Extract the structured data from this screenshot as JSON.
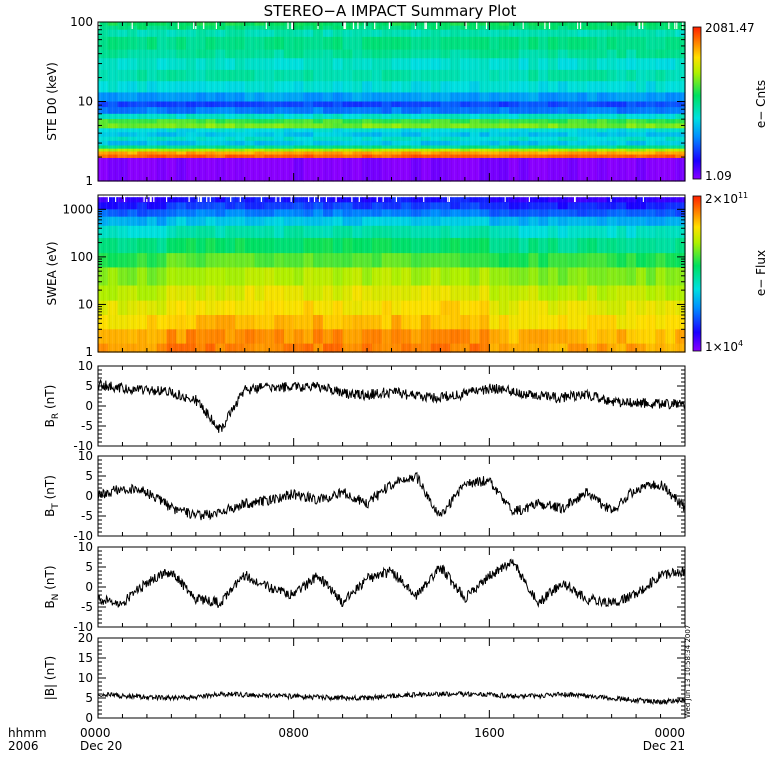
{
  "title": "STEREO−A IMPACT Summary Plot",
  "time_axis": {
    "ticks": [
      {
        "label": "0000",
        "sub": "Dec 20",
        "frac": 0
      },
      {
        "label": "0800",
        "sub": "",
        "frac": 0.3333
      },
      {
        "label": "1600",
        "sub": "",
        "frac": 0.6667
      },
      {
        "label": "0000",
        "sub": "Dec 21",
        "frac": 1
      }
    ],
    "left_label_1": "hhmm",
    "left_label_2": "2006"
  },
  "timestamp": "Wed Jun 13 10:58:34 2007",
  "colorbars": [
    {
      "top": "2081.47",
      "bottom": "1.09",
      "label": "e− Cnts"
    },
    {
      "top_base": "2×10",
      "top_exp": "11",
      "bottom_base": "1×10",
      "bottom_exp": "4",
      "label": "e− Flux"
    }
  ],
  "chart_data": [
    {
      "type": "heatmap",
      "ylabel": "STE D0 (keV)",
      "y_scale": "log",
      "ylim": [
        1,
        100
      ],
      "y_ticks": [
        "1",
        "10",
        "100"
      ],
      "bands": [
        {
          "e": 100,
          "c": 0.55
        },
        {
          "e": 90,
          "c": 0.52
        },
        {
          "e": 80,
          "c": 0.45
        },
        {
          "e": 65,
          "c": 0.5
        },
        {
          "e": 45,
          "c": 0.48
        },
        {
          "e": 35,
          "c": 0.42
        },
        {
          "e": 25,
          "c": 0.46
        },
        {
          "e": 18,
          "c": 0.4
        },
        {
          "e": 13,
          "c": 0.3
        },
        {
          "e": 10,
          "c": 0.2
        },
        {
          "e": 8.5,
          "c": 0.26
        },
        {
          "e": 7,
          "c": 0.42
        },
        {
          "e": 6,
          "c": 0.6
        },
        {
          "e": 5.3,
          "c": 0.65
        },
        {
          "e": 4.6,
          "c": 0.4
        },
        {
          "e": 4.1,
          "c": 0.36
        },
        {
          "e": 3.6,
          "c": 0.42
        },
        {
          "e": 3.2,
          "c": 0.36
        },
        {
          "e": 2.8,
          "c": 0.5
        },
        {
          "e": 2.55,
          "c": 0.7
        },
        {
          "e": 2.35,
          "c": 0.86
        },
        {
          "e": 2.15,
          "c": 0.93
        },
        {
          "e": 1.95,
          "c": 0.0
        }
      ]
    },
    {
      "type": "heatmap",
      "ylabel": "SWEA (eV)",
      "y_scale": "log",
      "ylim": [
        1,
        2000
      ],
      "y_ticks": [
        "1",
        "10",
        "100",
        "1000"
      ],
      "bands": [
        {
          "e": 1800,
          "c": 0.1
        },
        {
          "e": 1400,
          "c": 0.15
        },
        {
          "e": 1000,
          "c": 0.22
        },
        {
          "e": 700,
          "c": 0.32
        },
        {
          "e": 450,
          "c": 0.42
        },
        {
          "e": 250,
          "c": 0.5
        },
        {
          "e": 120,
          "c": 0.58
        },
        {
          "e": 60,
          "c": 0.66
        },
        {
          "e": 25,
          "c": 0.72
        },
        {
          "e": 12,
          "c": 0.76
        },
        {
          "e": 6,
          "c": 0.8
        },
        {
          "e": 3,
          "c": 0.84
        },
        {
          "e": 1.5,
          "c": 0.86
        },
        {
          "e": 1,
          "c": 0.86
        }
      ]
    },
    {
      "type": "line",
      "ylabel_base": "B",
      "ylabel_sub": "R",
      "ylabel_unit": "(nT)",
      "ylim": [
        -10,
        10
      ],
      "y_ticks": [
        -10,
        -5,
        0,
        5,
        10
      ],
      "x": [
        0,
        1,
        2,
        3,
        4,
        5,
        6,
        7,
        8,
        9,
        10,
        11,
        12,
        13,
        14,
        15,
        16,
        17,
        18,
        19,
        20,
        21,
        22,
        23,
        24
      ],
      "values": [
        5.5,
        4.5,
        4.0,
        3.5,
        1.5,
        -6.0,
        4.0,
        4.8,
        4.6,
        5.0,
        3.2,
        2.8,
        3.5,
        2.5,
        2.2,
        3.0,
        4.5,
        3.5,
        2.5,
        2.0,
        3.0,
        0.8,
        1.0,
        0.5,
        0.5
      ]
    },
    {
      "type": "line",
      "ylabel_base": "B",
      "ylabel_sub": "T",
      "ylabel_unit": "(nT)",
      "ylim": [
        -10,
        10
      ],
      "y_ticks": [
        -10,
        -5,
        0,
        5,
        10
      ],
      "x": [
        0,
        1,
        2,
        3,
        4,
        5,
        6,
        7,
        8,
        9,
        10,
        11,
        12,
        13,
        14,
        15,
        16,
        17,
        18,
        19,
        20,
        21,
        22,
        23,
        24
      ],
      "values": [
        0,
        2.0,
        1.0,
        -3.0,
        -5.0,
        -4.0,
        -2.0,
        -1.0,
        0.5,
        -1.0,
        1.0,
        -2.0,
        3.0,
        5.0,
        -5.0,
        3.0,
        4.0,
        -4.0,
        -2.0,
        -3.0,
        1.0,
        -4.0,
        2.0,
        3.0,
        -3.0
      ]
    },
    {
      "type": "line",
      "ylabel_base": "B",
      "ylabel_sub": "N",
      "ylabel_unit": "(nT)",
      "ylim": [
        -10,
        10
      ],
      "y_ticks": [
        -10,
        -5,
        0,
        5,
        10
      ],
      "x": [
        0,
        1,
        2,
        3,
        4,
        5,
        6,
        7,
        8,
        9,
        10,
        11,
        12,
        13,
        14,
        15,
        16,
        17,
        18,
        19,
        20,
        21,
        22,
        23,
        24
      ],
      "values": [
        -3.0,
        -4.0,
        1.0,
        4.0,
        -3.0,
        -4.0,
        3.0,
        0,
        -2.0,
        3.0,
        -4.0,
        2.0,
        4.0,
        -2.0,
        5.0,
        -3.0,
        3.0,
        6.0,
        -4.0,
        1.0,
        -3.0,
        -4.0,
        -2.0,
        3.0,
        4.0
      ]
    },
    {
      "type": "line",
      "ylabel": "|B| (nT)",
      "ylim": [
        0,
        20
      ],
      "y_ticks": [
        0,
        5,
        10,
        15,
        20
      ],
      "x": [
        0,
        1,
        2,
        3,
        4,
        5,
        6,
        7,
        8,
        9,
        10,
        11,
        12,
        13,
        14,
        15,
        16,
        17,
        18,
        19,
        20,
        21,
        22,
        23,
        24
      ],
      "values": [
        6.0,
        5.5,
        5.2,
        5.0,
        5.2,
        6.0,
        5.8,
        5.6,
        5.4,
        5.2,
        5.0,
        5.0,
        5.5,
        5.8,
        6.0,
        6.0,
        5.8,
        5.5,
        5.5,
        6.0,
        5.5,
        5.0,
        4.5,
        4.0,
        4.5
      ]
    }
  ]
}
